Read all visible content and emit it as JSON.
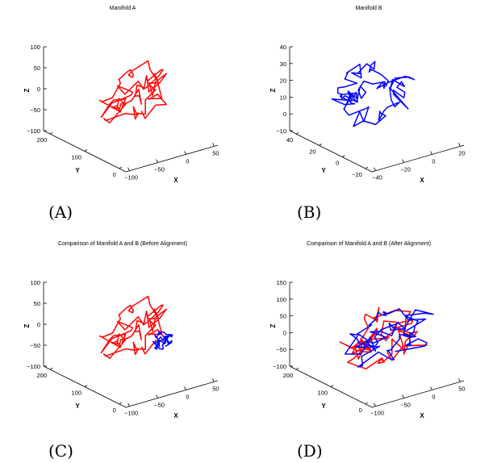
{
  "panel_labels": [
    "(A)",
    "(B)",
    "(C)",
    "(D)"
  ],
  "colors": {
    "manifold_a": "#ff0000",
    "manifold_b": "#0000ff"
  },
  "chart_data": [
    {
      "type": "line3d",
      "title": "Manifold A",
      "xlabel": "X",
      "ylabel": "Y",
      "zlabel": "Z",
      "xticks": [
        "−100",
        "−50",
        "0",
        "50"
      ],
      "yticks": [
        "0",
        "100",
        "200"
      ],
      "zticks": [
        "100",
        "50",
        "0",
        "−50",
        "−100"
      ],
      "xlim": [
        -100,
        50
      ],
      "ylim": [
        -50,
        200
      ],
      "zlim": [
        -100,
        100
      ],
      "grid": false,
      "series": [
        {
          "color": "#ff0000",
          "shape": "blob",
          "center": [
            -20,
            70,
            0
          ],
          "radius": [
            55,
            55
          ],
          "points": 80,
          "seed": 3
        }
      ]
    },
    {
      "type": "line3d",
      "title": "Manifold B",
      "xlabel": "X",
      "ylabel": "Y",
      "zlabel": "Z",
      "xticks": [
        "−40",
        "−20",
        "0",
        "20"
      ],
      "yticks": [
        "−20",
        "0",
        "20",
        "40"
      ],
      "zticks": [
        "40",
        "30",
        "20",
        "10",
        "0",
        "−10"
      ],
      "xlim": [
        -40,
        20
      ],
      "ylim": [
        -20,
        40
      ],
      "zlim": [
        -10,
        40
      ],
      "grid": false,
      "series": [
        {
          "color": "#0000ff",
          "shape": "ring",
          "center": [
            -10,
            12,
            15
          ],
          "radius": [
            20,
            12
          ],
          "points": 90,
          "seed": 7
        }
      ]
    },
    {
      "type": "line3d",
      "title": "Comparison of Manifold A and B (Before Alignment)",
      "xlabel": "X",
      "ylabel": "Y",
      "zlabel": "Z",
      "xticks": [
        "−100",
        "−50",
        "0",
        "50"
      ],
      "yticks": [
        "0",
        "100",
        "200"
      ],
      "zticks": [
        "100",
        "50",
        "0",
        "−50",
        "−100"
      ],
      "xlim": [
        -100,
        50
      ],
      "ylim": [
        -50,
        200
      ],
      "zlim": [
        -100,
        100
      ],
      "grid": false,
      "series": [
        {
          "color": "#ff0000",
          "shape": "blob",
          "center": [
            -20,
            70,
            0
          ],
          "radius": [
            55,
            55
          ],
          "points": 80,
          "seed": 3
        },
        {
          "color": "#0000ff",
          "shape": "blob",
          "center": [
            -5,
            15,
            -8
          ],
          "radius": [
            15,
            15
          ],
          "points": 60,
          "seed": 11
        }
      ]
    },
    {
      "type": "line3d",
      "title": "Comparison of Manifold A and B (After Alignment)",
      "xlabel": "X",
      "ylabel": "Y",
      "zlabel": "Z",
      "xticks": [
        "−100",
        "−50",
        "0",
        "50"
      ],
      "yticks": [
        "0",
        "100",
        "200"
      ],
      "zticks": [
        "150",
        "100",
        "50",
        "0",
        "−50",
        "−100"
      ],
      "xlim": [
        -100,
        50
      ],
      "ylim": [
        -50,
        200
      ],
      "zlim": [
        -100,
        150
      ],
      "grid": false,
      "series": [
        {
          "color": "#ff0000",
          "shape": "blob",
          "center": [
            -20,
            70,
            0
          ],
          "radius": [
            60,
            60
          ],
          "points": 80,
          "seed": 5
        },
        {
          "color": "#0000ff",
          "shape": "blob",
          "center": [
            -10,
            65,
            5
          ],
          "radius": [
            62,
            62
          ],
          "points": 80,
          "seed": 9
        }
      ]
    }
  ]
}
